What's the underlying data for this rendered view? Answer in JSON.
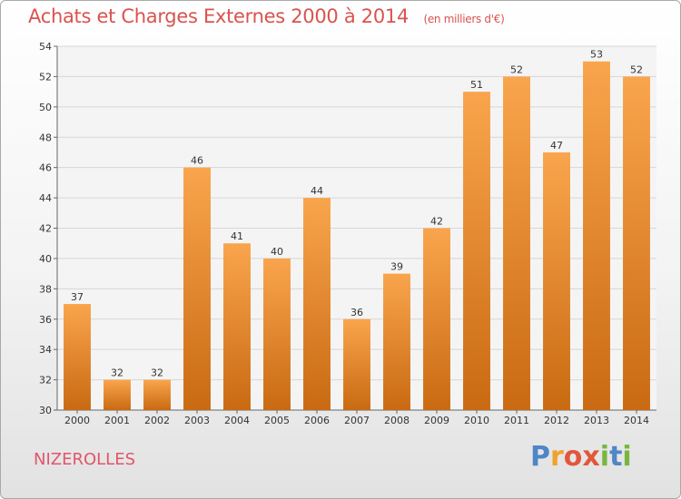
{
  "title": "Achats et Charges Externes 2000 à 2014",
  "unit_note": "(en milliers d'€)",
  "place_name": "NIZEROLLES",
  "brand": {
    "letters": [
      "P",
      "r",
      "o",
      "x",
      "i",
      "t",
      "i"
    ]
  },
  "colors": {
    "bar_top": "#f9a54d",
    "bar_bottom": "#c96a12",
    "title": "#d9534f",
    "grid": "#d7d7d7"
  },
  "chart_data": {
    "type": "bar",
    "title": "Achats et Charges Externes 2000 à 2014",
    "xlabel": "",
    "ylabel": "",
    "ylim": [
      30,
      54
    ],
    "yticks": [
      30,
      32,
      34,
      36,
      38,
      40,
      42,
      44,
      46,
      48,
      50,
      52,
      54
    ],
    "grid": true,
    "categories": [
      "2000",
      "2001",
      "2002",
      "2003",
      "2004",
      "2005",
      "2006",
      "2007",
      "2008",
      "2009",
      "2010",
      "2011",
      "2012",
      "2013",
      "2014"
    ],
    "values": [
      37,
      32,
      32,
      46,
      41,
      40,
      44,
      36,
      39,
      42,
      51,
      52,
      47,
      53,
      52
    ]
  }
}
